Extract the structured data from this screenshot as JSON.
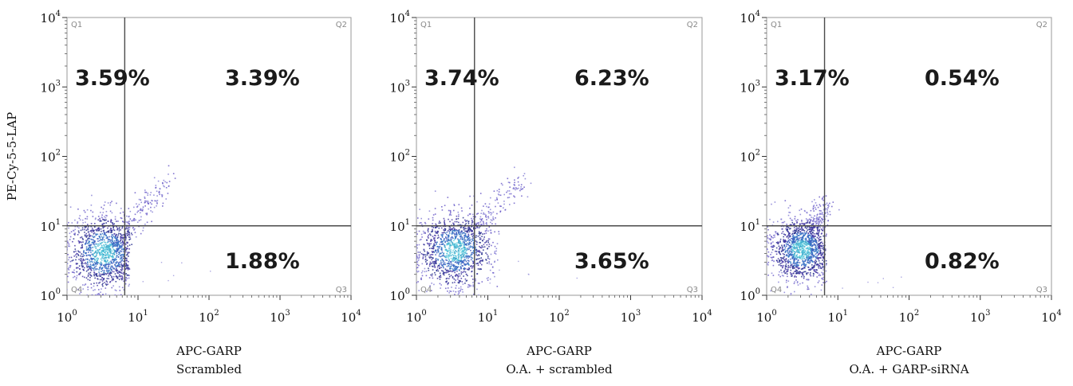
{
  "chart_data": [
    {
      "type": "scatter",
      "subtitle": "Scrambled",
      "xlabel": "APC-GARP",
      "ylabel": "PE-Cy-5-5-LAP",
      "x_scale": "log",
      "y_scale": "log",
      "xlim": [
        1,
        10000
      ],
      "ylim": [
        1,
        10000
      ],
      "x_ticks": [
        "10^0",
        "10^1",
        "10^2",
        "10^3",
        "10^4"
      ],
      "y_ticks": [
        "10^0",
        "10^1",
        "10^2",
        "10^3",
        "10^4"
      ],
      "gate": {
        "x": 6.5,
        "y": 10
      },
      "quadrants": {
        "Q1": {
          "label": "Q1",
          "percent": "3.59%"
        },
        "Q2": {
          "label": "Q2",
          "percent": "3.39%"
        },
        "Q3": {
          "label": "Q3",
          "percent": "1.88%"
        },
        "Q4": {
          "label": "Q4",
          "percent": ""
        }
      },
      "cloud": {
        "x_center": 3.2,
        "y_center": 4.2,
        "x_spread": 0.32,
        "y_spread": 0.33,
        "tail_to_x": 25,
        "tail_to_y": 40,
        "x_cutoff": 7.5
      }
    },
    {
      "type": "scatter",
      "subtitle": "O.A. + scrambled",
      "xlabel": "APC-GARP",
      "ylabel": "",
      "x_scale": "log",
      "y_scale": "log",
      "xlim": [
        1,
        10000
      ],
      "ylim": [
        1,
        10000
      ],
      "x_ticks": [
        "10^0",
        "10^1",
        "10^2",
        "10^3",
        "10^4"
      ],
      "y_ticks": [
        "10^0",
        "10^1",
        "10^2",
        "10^3",
        "10^4"
      ],
      "gate": {
        "x": 6.5,
        "y": 10
      },
      "quadrants": {
        "Q1": {
          "label": "Q1",
          "percent": "3.74%"
        },
        "Q2": {
          "label": "Q2",
          "percent": "6.23%"
        },
        "Q3": {
          "label": "Q3",
          "percent": "3.65%"
        },
        "Q4": {
          "label": "Q4",
          "percent": ""
        }
      },
      "cloud": {
        "x_center": 3.4,
        "y_center": 4.5,
        "x_spread": 0.33,
        "y_spread": 0.33,
        "tail_to_x": 30,
        "tail_to_y": 50,
        "x_cutoff": 14
      }
    },
    {
      "type": "scatter",
      "subtitle": "O.A. + GARP-siRNA",
      "xlabel": "APC-GARP",
      "ylabel": "",
      "x_scale": "log",
      "y_scale": "log",
      "xlim": [
        1,
        10000
      ],
      "ylim": [
        1,
        10000
      ],
      "x_ticks": [
        "10^0",
        "10^1",
        "10^2",
        "10^3",
        "10^4"
      ],
      "y_ticks": [
        "10^0",
        "10^1",
        "10^2",
        "10^3",
        "10^4"
      ],
      "gate": {
        "x": 6.5,
        "y": 10
      },
      "quadrants": {
        "Q1": {
          "label": "Q1",
          "percent": "3.17%"
        },
        "Q2": {
          "label": "Q2",
          "percent": "0.54%"
        },
        "Q3": {
          "label": "Q3",
          "percent": "0.82%"
        },
        "Q4": {
          "label": "Q4",
          "percent": ""
        }
      },
      "cloud": {
        "x_center": 3.0,
        "y_center": 4.6,
        "x_spread": 0.27,
        "y_spread": 0.28,
        "tail_to_x": 7,
        "tail_to_y": 22,
        "x_cutoff": 6.8
      }
    }
  ]
}
